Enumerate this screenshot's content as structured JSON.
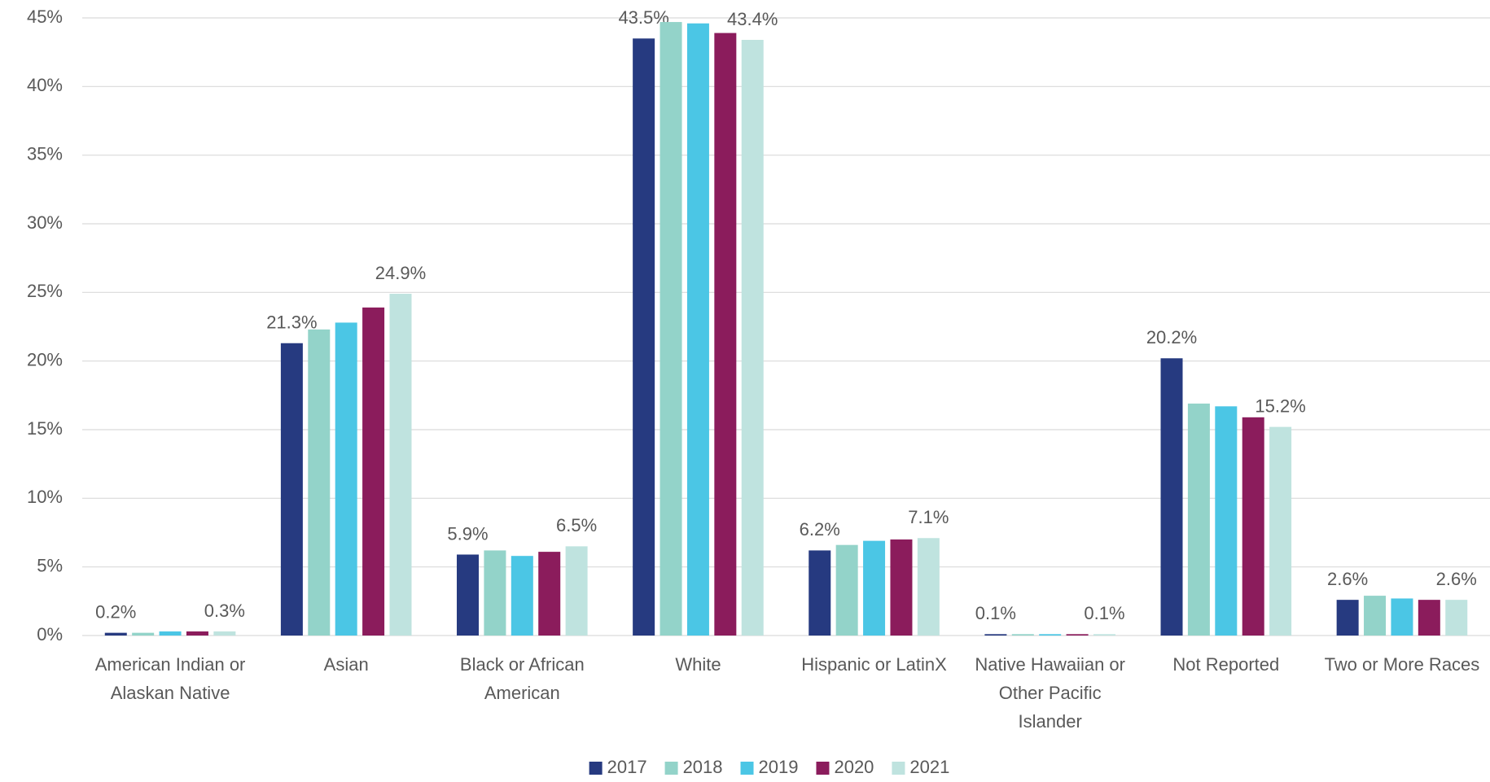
{
  "chart_data": {
    "type": "bar",
    "categories": [
      "American Indian or Alaskan Native",
      "Asian",
      "Black or African American",
      "White",
      "Hispanic or LatinX",
      "Native Hawaiian or Other Pacific Islander",
      "Not Reported",
      "Two or More Races"
    ],
    "series": [
      {
        "name": "2017",
        "color": "#263a80",
        "values": [
          0.2,
          21.3,
          5.9,
          43.5,
          6.2,
          0.1,
          20.2,
          2.6
        ],
        "value_labels": [
          "0.2%",
          "21.3%",
          "5.9%",
          "43.5%",
          "6.2%",
          "0.1%",
          "20.2%",
          "2.6%"
        ]
      },
      {
        "name": "2018",
        "color": "#93d3c9",
        "values": [
          0.2,
          22.3,
          6.2,
          44.7,
          6.6,
          0.1,
          16.9,
          2.9
        ]
      },
      {
        "name": "2019",
        "color": "#4bc6e5",
        "values": [
          0.3,
          22.8,
          5.8,
          44.6,
          6.9,
          0.1,
          16.7,
          2.7
        ]
      },
      {
        "name": "2020",
        "color": "#8b1c5c",
        "values": [
          0.3,
          23.9,
          6.1,
          43.9,
          7.0,
          0.1,
          15.9,
          2.6
        ]
      },
      {
        "name": "2021",
        "color": "#bfe3df",
        "values": [
          0.3,
          24.9,
          6.5,
          43.4,
          7.1,
          0.1,
          15.2,
          2.6
        ],
        "value_labels": [
          "0.3%",
          "24.9%",
          "6.5%",
          "43.4%",
          "7.1%",
          "0.1%",
          "15.2%",
          "2.6%"
        ]
      }
    ],
    "ylim": [
      0,
      45
    ],
    "yticks": [
      {
        "value": 0,
        "label": "0%"
      },
      {
        "value": 5,
        "label": "5%"
      },
      {
        "value": 10,
        "label": "10%"
      },
      {
        "value": 15,
        "label": "15%"
      },
      {
        "value": 20,
        "label": "20%"
      },
      {
        "value": 25,
        "label": "25%"
      },
      {
        "value": 30,
        "label": "30%"
      },
      {
        "value": 35,
        "label": "35%"
      },
      {
        "value": 40,
        "label": "40%"
      },
      {
        "value": 45,
        "label": "45%"
      }
    ],
    "grid": true,
    "legend": "bottom"
  }
}
